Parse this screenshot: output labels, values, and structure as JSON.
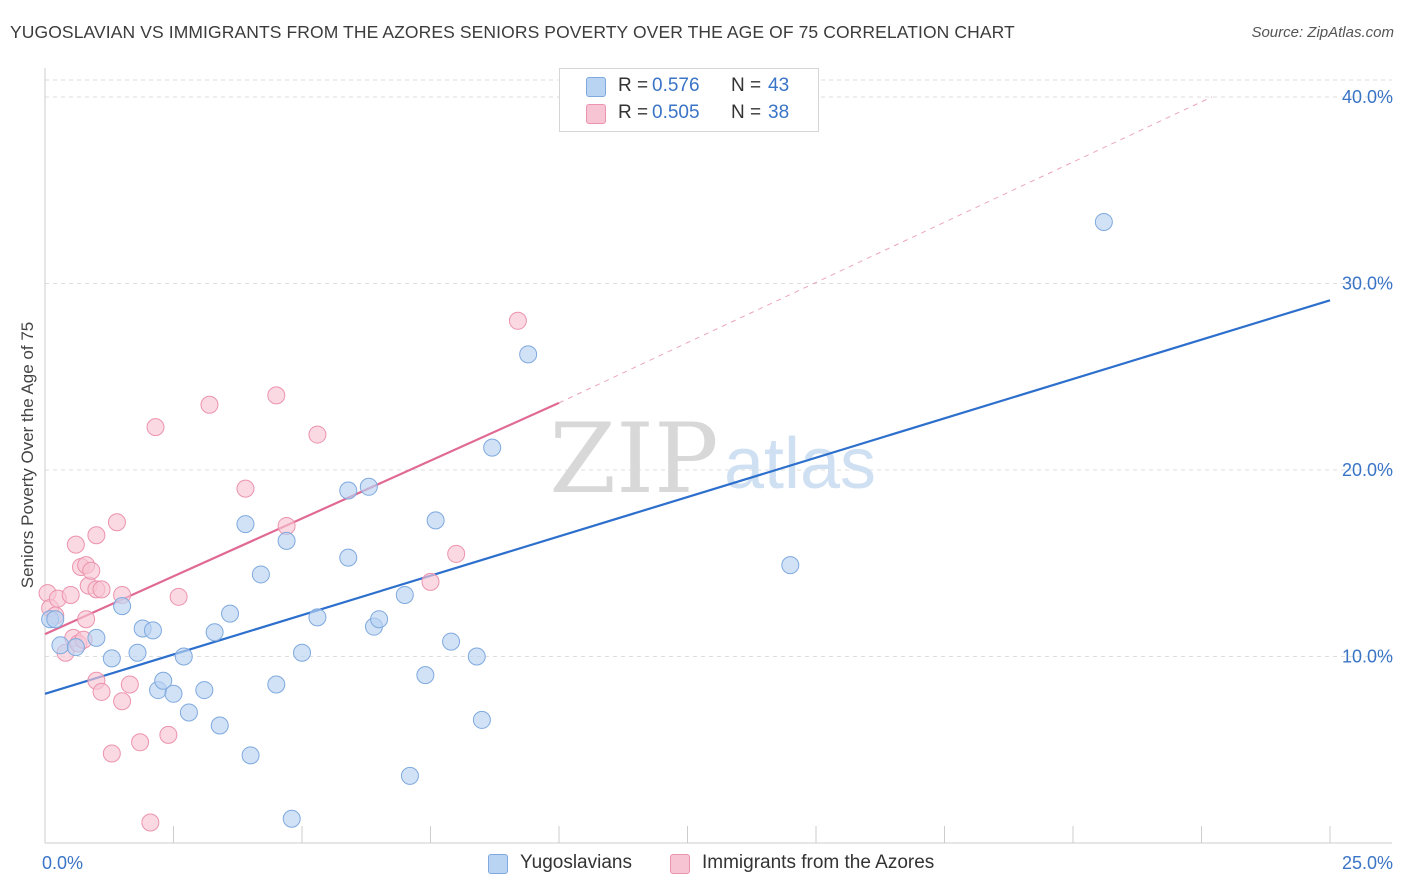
{
  "header": {
    "title": "YUGOSLAVIAN VS IMMIGRANTS FROM THE AZORES SENIORS POVERTY OVER THE AGE OF 75 CORRELATION CHART",
    "source": "Source: ZipAtlas.com"
  },
  "watermark": {
    "zip": "ZIP",
    "atlas": "atlas"
  },
  "legend": {
    "items": [
      {
        "r_label": "R =",
        "r_value": "0.576",
        "n_label": "N =",
        "n_value": "43"
      },
      {
        "r_label": "R =",
        "r_value": "0.505",
        "n_label": "N =",
        "n_value": "38"
      }
    ]
  },
  "bottom_legend": [
    "Yugoslavians",
    "Immigrants from the Azores"
  ],
  "colors": {
    "blue_fill": "#b9d3f3",
    "blue_stroke": "#7fa9de",
    "blue_line": "#2d6fcc",
    "pink_fill": "#f7c4d3",
    "pink_stroke": "#ec93ad",
    "pink_line": "#e06a94",
    "axis_label": "#3a74c6",
    "grid": "#dedede"
  },
  "chart_data": {
    "type": "scatter",
    "title": "YUGOSLAVIAN VS IMMIGRANTS FROM THE AZORES SENIORS POVERTY OVER THE AGE OF 75 CORRELATION CHART",
    "xlabel": "",
    "ylabel": "Seniors Poverty Over the Age of 75",
    "xlim": [
      0,
      25
    ],
    "ylim": [
      0,
      40
    ],
    "x_tick_labels": [
      "0.0%",
      "25.0%"
    ],
    "y_ticks": [
      10,
      20,
      30,
      40
    ],
    "y_tick_labels": [
      "10.0%",
      "20.0%",
      "30.0%",
      "40.0%"
    ],
    "grid": true,
    "legend_position": "top-center",
    "series": [
      {
        "name": "Yugoslavians",
        "R": 0.576,
        "N": 43,
        "trend": {
          "x": [
            0,
            25
          ],
          "y": [
            8.0,
            29.1
          ]
        },
        "points": [
          [
            0.1,
            12.0
          ],
          [
            0.3,
            10.6
          ],
          [
            0.6,
            10.5
          ],
          [
            1.0,
            11.0
          ],
          [
            1.3,
            9.9
          ],
          [
            1.5,
            12.7
          ],
          [
            1.9,
            11.5
          ],
          [
            2.1,
            11.4
          ],
          [
            2.2,
            8.2
          ],
          [
            2.3,
            8.7
          ],
          [
            2.5,
            8.0
          ],
          [
            2.7,
            10.0
          ],
          [
            2.8,
            7.0
          ],
          [
            3.1,
            8.2
          ],
          [
            3.3,
            11.3
          ],
          [
            3.4,
            6.3
          ],
          [
            3.6,
            12.3
          ],
          [
            3.9,
            17.1
          ],
          [
            4.0,
            4.7
          ],
          [
            4.2,
            14.4
          ],
          [
            4.5,
            8.5
          ],
          [
            4.7,
            16.2
          ],
          [
            4.8,
            1.3
          ],
          [
            5.0,
            10.2
          ],
          [
            5.3,
            12.1
          ],
          [
            5.9,
            15.3
          ],
          [
            5.9,
            18.9
          ],
          [
            6.3,
            19.1
          ],
          [
            6.4,
            11.6
          ],
          [
            6.5,
            12.0
          ],
          [
            7.0,
            13.3
          ],
          [
            7.1,
            3.6
          ],
          [
            7.4,
            9.0
          ],
          [
            7.6,
            17.3
          ],
          [
            7.9,
            10.8
          ],
          [
            8.4,
            10.0
          ],
          [
            8.5,
            6.6
          ],
          [
            8.7,
            21.2
          ],
          [
            9.4,
            26.2
          ],
          [
            14.5,
            14.9
          ],
          [
            20.6,
            33.3
          ],
          [
            0.2,
            12.0
          ],
          [
            1.8,
            10.2
          ]
        ]
      },
      {
        "name": "Immigrants from the Azores",
        "R": 0.505,
        "N": 38,
        "trend": {
          "x": [
            0,
            10
          ],
          "y": [
            11.2,
            23.6
          ]
        },
        "trend_extended": {
          "x": [
            10,
            22.7
          ],
          "y": [
            23.6,
            40.0
          ]
        },
        "points": [
          [
            0.05,
            13.4
          ],
          [
            0.1,
            12.6
          ],
          [
            0.2,
            12.2
          ],
          [
            0.25,
            13.1
          ],
          [
            0.4,
            10.2
          ],
          [
            0.5,
            13.3
          ],
          [
            0.55,
            11.0
          ],
          [
            0.6,
            16.0
          ],
          [
            0.65,
            10.7
          ],
          [
            0.7,
            14.8
          ],
          [
            0.75,
            10.9
          ],
          [
            0.8,
            14.9
          ],
          [
            0.8,
            12.0
          ],
          [
            0.85,
            13.8
          ],
          [
            0.9,
            14.6
          ],
          [
            1.0,
            13.6
          ],
          [
            1.0,
            8.7
          ],
          [
            1.0,
            16.5
          ],
          [
            1.1,
            13.6
          ],
          [
            1.1,
            8.1
          ],
          [
            1.3,
            4.8
          ],
          [
            1.4,
            17.2
          ],
          [
            1.5,
            7.6
          ],
          [
            1.5,
            13.3
          ],
          [
            1.65,
            8.5
          ],
          [
            1.85,
            5.4
          ],
          [
            2.05,
            1.1
          ],
          [
            2.15,
            22.3
          ],
          [
            2.4,
            5.8
          ],
          [
            2.6,
            13.2
          ],
          [
            3.2,
            23.5
          ],
          [
            3.9,
            19.0
          ],
          [
            4.5,
            24.0
          ],
          [
            4.7,
            17.0
          ],
          [
            5.3,
            21.9
          ],
          [
            7.5,
            14.0
          ],
          [
            8.0,
            15.5
          ],
          [
            9.2,
            28.0
          ]
        ]
      }
    ]
  }
}
